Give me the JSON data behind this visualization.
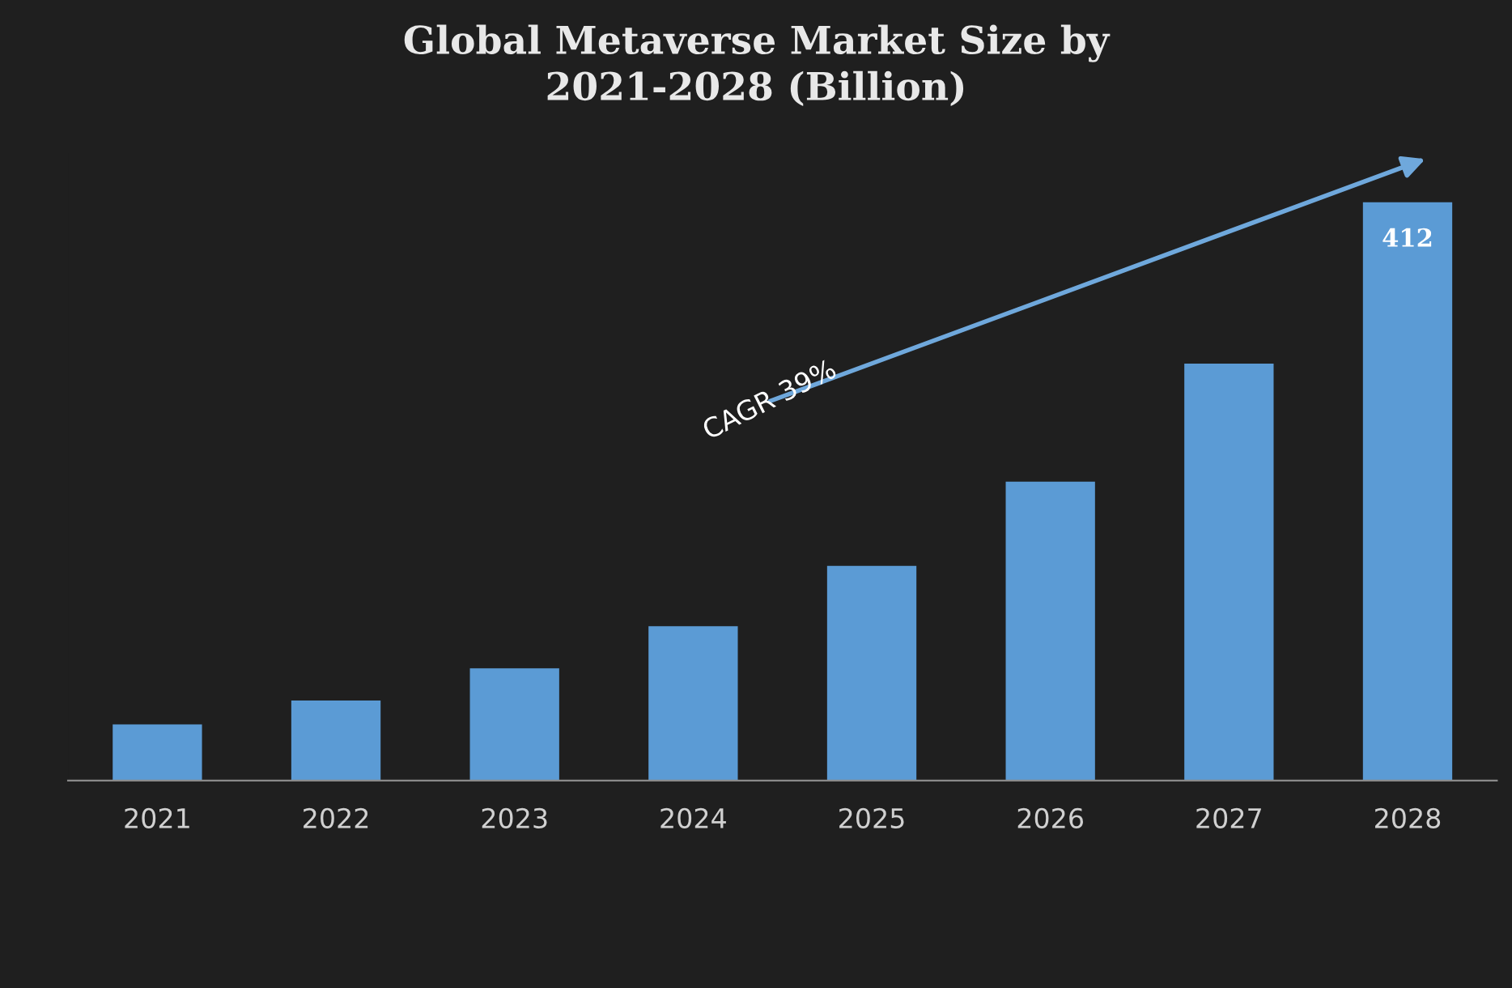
{
  "chart_data": {
    "type": "bar",
    "title": "Global Metaverse Market Size by\n2021-2028 (Billion)",
    "categories": [
      "2021",
      "2022",
      "2023",
      "2024",
      "2025",
      "2026",
      "2027",
      "2028"
    ],
    "values": [
      40,
      57,
      80,
      110,
      153,
      213,
      297,
      412
    ],
    "value_labels": [
      null,
      null,
      null,
      null,
      null,
      null,
      null,
      "412"
    ],
    "color": "#5b9bd5",
    "annotations": [
      "CAGR 39%"
    ],
    "grid": false,
    "legend": false
  }
}
